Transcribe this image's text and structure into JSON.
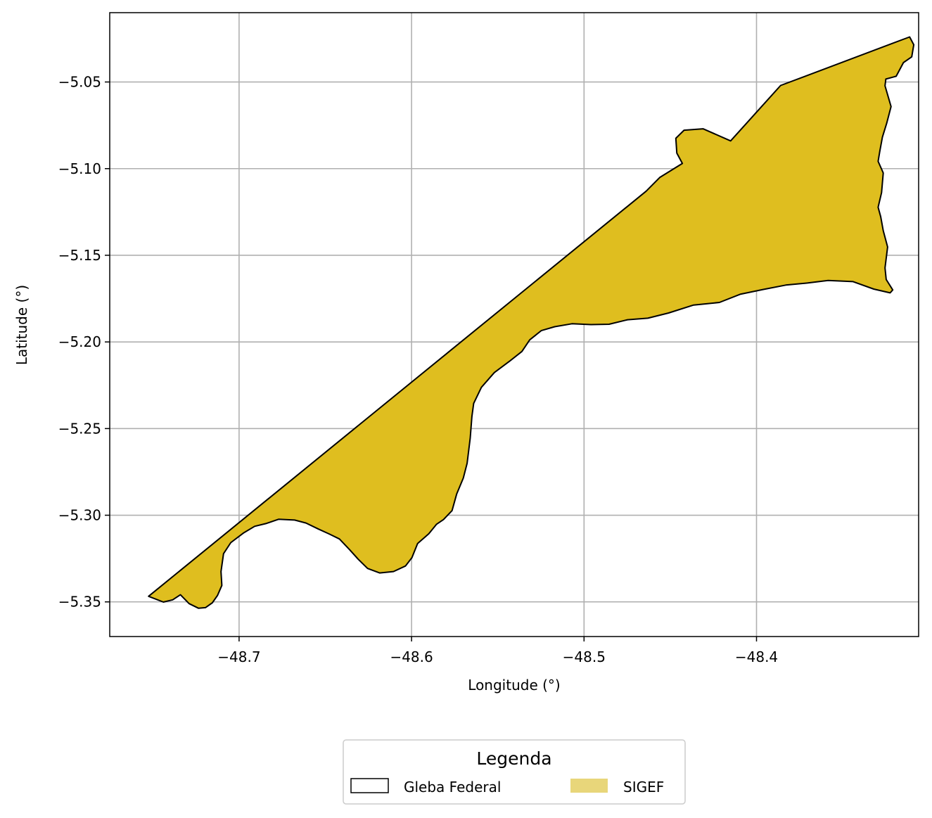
{
  "chart_data": {
    "type": "map",
    "title": "",
    "xlabel": "Longitude (°)",
    "ylabel": "Latitude (°)",
    "xlim": [
      -48.775,
      -48.306
    ],
    "ylim": [
      -5.37,
      -5.01
    ],
    "x_ticks": [
      -48.7,
      -48.6,
      -48.5,
      -48.4
    ],
    "x_tick_labels": [
      "−48.7",
      "−48.6",
      "−48.5",
      "−48.4"
    ],
    "y_ticks": [
      -5.05,
      -5.1,
      -5.15,
      -5.2,
      -5.25,
      -5.3,
      -5.35
    ],
    "y_tick_labels": [
      "−5.05",
      "−5.10",
      "−5.15",
      "−5.20",
      "−5.25",
      "−5.30",
      "−5.35"
    ],
    "grid": true,
    "legend": {
      "title": "Legenda",
      "placement": "bottom-center",
      "entries": [
        {
          "label": "Gleba Federal",
          "style": "outline",
          "edge_color": "#000000"
        },
        {
          "label": "SIGEF",
          "style": "fill",
          "fill_color": "#e8d67a"
        }
      ]
    },
    "layers": [
      {
        "name": "Gleba Federal",
        "fill_color": "#dfbe1f",
        "edge_color": "#000000",
        "coordinates": [
          [
            -48.7525,
            -5.3468
          ],
          [
            -48.7439,
            -5.3501
          ],
          [
            -48.7385,
            -5.3488
          ],
          [
            -48.734,
            -5.3459
          ],
          [
            -48.729,
            -5.351
          ],
          [
            -48.7235,
            -5.3537
          ],
          [
            -48.7195,
            -5.3533
          ],
          [
            -48.7155,
            -5.3505
          ],
          [
            -48.7125,
            -5.3462
          ],
          [
            -48.71,
            -5.3405
          ],
          [
            -48.7105,
            -5.3325
          ],
          [
            -48.709,
            -5.3222
          ],
          [
            -48.7048,
            -5.3158
          ],
          [
            -48.6975,
            -5.3103
          ],
          [
            -48.691,
            -5.3064
          ],
          [
            -48.684,
            -5.3047
          ],
          [
            -48.677,
            -5.3023
          ],
          [
            -48.6678,
            -5.3028
          ],
          [
            -48.6612,
            -5.3045
          ],
          [
            -48.654,
            -5.308
          ],
          [
            -48.6478,
            -5.3108
          ],
          [
            -48.6418,
            -5.3137
          ],
          [
            -48.6358,
            -5.32
          ],
          [
            -48.631,
            -5.3253
          ],
          [
            -48.6255,
            -5.3307
          ],
          [
            -48.6185,
            -5.3333
          ],
          [
            -48.6105,
            -5.3325
          ],
          [
            -48.6035,
            -5.3293
          ],
          [
            -48.5998,
            -5.3245
          ],
          [
            -48.5965,
            -5.3163
          ],
          [
            -48.59,
            -5.3107
          ],
          [
            -48.5855,
            -5.3052
          ],
          [
            -48.5815,
            -5.3025
          ],
          [
            -48.5765,
            -5.2973
          ],
          [
            -48.5738,
            -5.2877
          ],
          [
            -48.57,
            -5.2785
          ],
          [
            -48.5678,
            -5.27
          ],
          [
            -48.566,
            -5.2555
          ],
          [
            -48.565,
            -5.243
          ],
          [
            -48.564,
            -5.2355
          ],
          [
            -48.5595,
            -5.2262
          ],
          [
            -48.552,
            -5.2177
          ],
          [
            -48.543,
            -5.211
          ],
          [
            -48.536,
            -5.2055
          ],
          [
            -48.5315,
            -5.1988
          ],
          [
            -48.5248,
            -5.1935
          ],
          [
            -48.517,
            -5.1912
          ],
          [
            -48.507,
            -5.1895
          ],
          [
            -48.496,
            -5.19
          ],
          [
            -48.4855,
            -5.1898
          ],
          [
            -48.4748,
            -5.1872
          ],
          [
            -48.463,
            -5.1863
          ],
          [
            -48.451,
            -5.1833
          ],
          [
            -48.4365,
            -5.1787
          ],
          [
            -48.4215,
            -5.1772
          ],
          [
            -48.4095,
            -5.1725
          ],
          [
            -48.396,
            -5.1697
          ],
          [
            -48.383,
            -5.1672
          ],
          [
            -48.3705,
            -5.166
          ],
          [
            -48.3585,
            -5.1645
          ],
          [
            -48.344,
            -5.1652
          ],
          [
            -48.332,
            -5.1695
          ],
          [
            -48.3225,
            -5.1717
          ],
          [
            -48.321,
            -5.17
          ],
          [
            -48.3248,
            -5.164
          ],
          [
            -48.3255,
            -5.1573
          ],
          [
            -48.324,
            -5.1452
          ],
          [
            -48.3265,
            -5.1358
          ],
          [
            -48.328,
            -5.1278
          ],
          [
            -48.3295,
            -5.1223
          ],
          [
            -48.3275,
            -5.1138
          ],
          [
            -48.3265,
            -5.1025
          ],
          [
            -48.3295,
            -5.0958
          ],
          [
            -48.3285,
            -5.09
          ],
          [
            -48.327,
            -5.0818
          ],
          [
            -48.3245,
            -5.0738
          ],
          [
            -48.322,
            -5.0642
          ],
          [
            -48.3255,
            -5.0522
          ],
          [
            -48.325,
            -5.0483
          ],
          [
            -48.319,
            -5.0467
          ],
          [
            -48.3148,
            -5.0388
          ],
          [
            -48.31,
            -5.0355
          ],
          [
            -48.3088,
            -5.0285
          ],
          [
            -48.3112,
            -5.024
          ],
          [
            -48.386,
            -5.052
          ],
          [
            -48.415,
            -5.084
          ],
          [
            -48.431,
            -5.077
          ],
          [
            -48.442,
            -5.0778
          ],
          [
            -48.4468,
            -5.0825
          ],
          [
            -48.4462,
            -5.091
          ],
          [
            -48.443,
            -5.097
          ],
          [
            -48.456,
            -5.105
          ],
          [
            -48.464,
            -5.113
          ],
          [
            -48.7525,
            -5.3468
          ]
        ]
      }
    ]
  }
}
